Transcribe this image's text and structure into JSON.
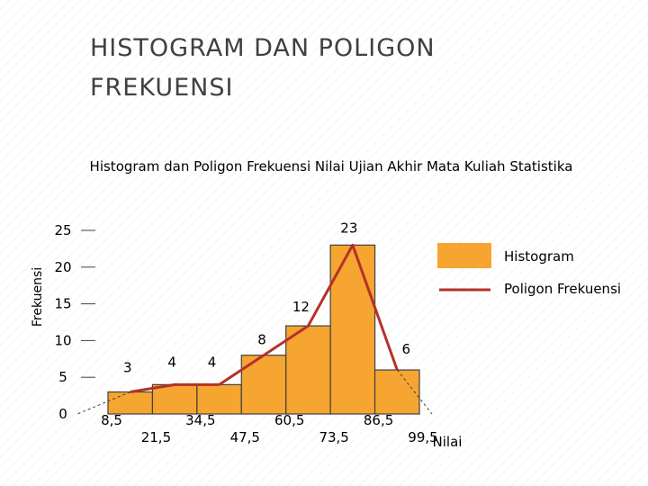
{
  "slide": {
    "title": "HISTOGRAM DAN POLIGON\nFREKUENSI"
  },
  "colors": {
    "bar_fill": "#F5A530",
    "bar_stroke": "#404040",
    "polygon_line": "#B5312A",
    "axis": "#404040"
  },
  "chart_data": {
    "type": "bar",
    "title": "Histogram dan Poligon Frekuensi Nilai Ujian Akhir Mata Kuliah Statistika",
    "xlabel": "Nilai",
    "ylabel": "Frekuensi",
    "ylim": [
      0,
      25
    ],
    "yticks": [
      "0",
      "5",
      "10",
      "15",
      "20",
      "25"
    ],
    "x_tick_labels": [
      "8,5",
      "21,5",
      "34,5",
      "47,5",
      "60,5",
      "73,5",
      "86,5",
      "99,5"
    ],
    "legend_position": "right",
    "grid": false,
    "series": [
      {
        "name": "Histogram",
        "type": "bar",
        "bins": [
          {
            "from": 8.5,
            "to": 21.5,
            "value": 3
          },
          {
            "from": 21.5,
            "to": 34.5,
            "value": 4
          },
          {
            "from": 34.5,
            "to": 47.5,
            "value": 4
          },
          {
            "from": 47.5,
            "to": 60.5,
            "value": 8
          },
          {
            "from": 60.5,
            "to": 73.5,
            "value": 12
          },
          {
            "from": 73.5,
            "to": 86.5,
            "value": 23
          },
          {
            "from": 86.5,
            "to": 99.5,
            "value": 6
          }
        ]
      },
      {
        "name": "Poligon Frekuensi",
        "type": "line",
        "points": [
          {
            "x": 15,
            "y": 3
          },
          {
            "x": 28,
            "y": 4
          },
          {
            "x": 41,
            "y": 4
          },
          {
            "x": 54,
            "y": 8
          },
          {
            "x": 67,
            "y": 12
          },
          {
            "x": 80,
            "y": 23
          },
          {
            "x": 93,
            "y": 6
          }
        ]
      }
    ],
    "data_labels": [
      {
        "x": 15,
        "y": 3,
        "text": "3"
      },
      {
        "x": 28,
        "y": 4,
        "text": "4"
      },
      {
        "x": 41,
        "y": 4,
        "text": "4"
      },
      {
        "x": 54,
        "y": 8,
        "text": "8"
      },
      {
        "x": 67,
        "y": 12,
        "text": "12"
      },
      {
        "x": 80,
        "y": 23,
        "text": "23"
      },
      {
        "x": 93,
        "y": 6,
        "text": "6"
      }
    ]
  }
}
